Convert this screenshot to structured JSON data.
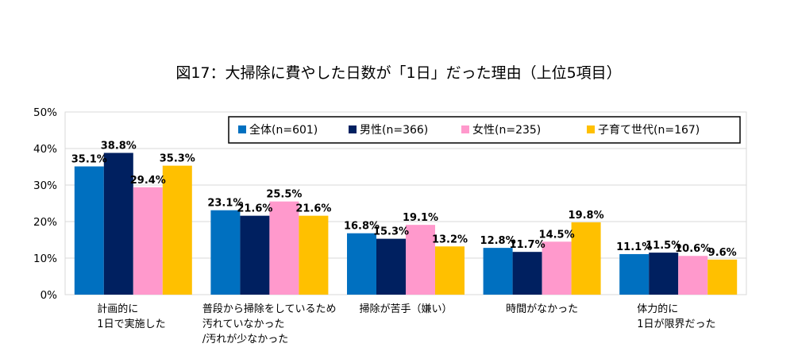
{
  "chart_data": {
    "type": "bar",
    "title": "図17：大掃除に費やした日数が「1日」だった理由（上位5項目）",
    "xlabel": "",
    "ylabel": "",
    "ylim": [
      0,
      50
    ],
    "yticks": [
      "0%",
      "10%",
      "20%",
      "30%",
      "40%",
      "50%"
    ],
    "grid": true,
    "legend_position": "top-right",
    "categories": [
      [
        "計画的に",
        "1日で実施した"
      ],
      [
        "普段から掃除をしているため",
        "汚れていなかった",
        "/汚れが少なかった"
      ],
      [
        "掃除が苦手（嫌い）"
      ],
      [
        "時間がなかった"
      ],
      [
        "体力的に",
        "1日が限界だった"
      ]
    ],
    "series": [
      {
        "name": "全体(n=601)",
        "color": "#0070C0",
        "values": [
          35.1,
          23.1,
          16.8,
          12.8,
          11.1
        ],
        "labels": [
          "35.1%",
          "23.1%",
          "16.8%",
          "12.8%",
          "11.1%"
        ]
      },
      {
        "name": "男性(n=366)",
        "color": "#002060",
        "values": [
          38.8,
          21.6,
          15.3,
          11.7,
          11.5
        ],
        "labels": [
          "38.8%",
          "21.6%",
          "15.3%",
          "11.7%",
          "11.5%"
        ]
      },
      {
        "name": "女性(n=235)",
        "color": "#FF99CC",
        "values": [
          29.4,
          25.5,
          19.1,
          14.5,
          10.6
        ],
        "labels": [
          "29.4%",
          "25.5%",
          "19.1%",
          "14.5%",
          "10.6%"
        ]
      },
      {
        "name": "子育て世代(n=167)",
        "color": "#FFC000",
        "values": [
          35.3,
          21.6,
          13.2,
          19.8,
          9.6
        ],
        "labels": [
          "35.3%",
          "21.6%",
          "13.2%",
          "19.8%",
          "9.6%"
        ]
      }
    ]
  }
}
